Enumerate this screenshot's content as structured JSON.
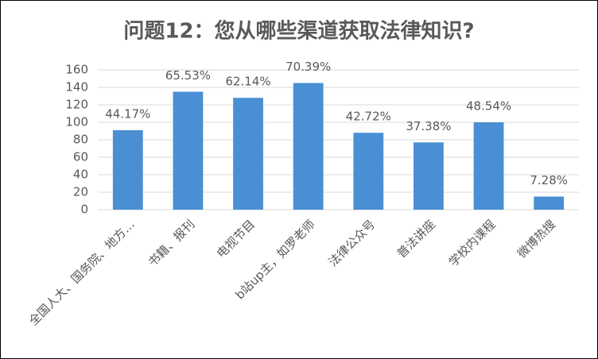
{
  "chart_data": {
    "type": "bar",
    "title": "问题12：您从哪些渠道获取法律知识?",
    "categories": [
      "全国人大、国务院、地方…",
      "书籍、报刊",
      "电视节目",
      "b站up主，如罗老师",
      "法律公众号",
      "普法讲座",
      "学校内课程",
      "微博热搜"
    ],
    "values": [
      91,
      135,
      128,
      145,
      88,
      77,
      100,
      15
    ],
    "data_labels": [
      "44.17%",
      "65.53%",
      "62.14%",
      "70.39%",
      "42.72%",
      "37.38%",
      "48.54%",
      "7.28%"
    ],
    "color": "#4a8fd4",
    "ylim": [
      0,
      160
    ],
    "yticks": [
      0,
      20,
      40,
      60,
      80,
      100,
      120,
      140,
      160
    ],
    "grid": true
  }
}
